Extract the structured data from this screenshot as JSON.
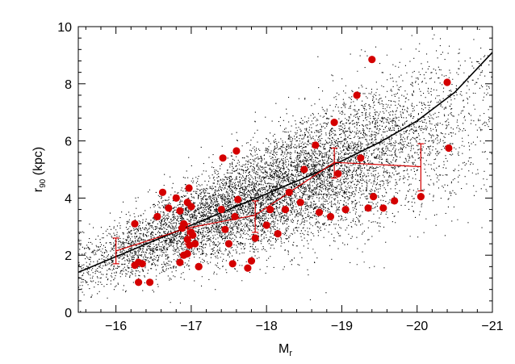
{
  "chart_data": {
    "type": "scatter",
    "title": "",
    "xlabel": "M",
    "xlabel_sub": "r",
    "ylabel": "r",
    "ylabel_sub": "90",
    "ylabel_unit": " (kpc)",
    "xlim": [
      -15.5,
      -21
    ],
    "ylim": [
      0,
      10
    ],
    "x_reversed": true,
    "x_ticks": [
      -16,
      -17,
      -18,
      -19,
      -20,
      -21
    ],
    "x_tick_labels": [
      "−16",
      "−17",
      "−18",
      "−19",
      "−20",
      "−21"
    ],
    "y_ticks": [
      0,
      2,
      4,
      6,
      8,
      10
    ],
    "y_tick_labels": [
      "0",
      "2",
      "4",
      "6",
      "8",
      "10"
    ],
    "grid": false,
    "colors": {
      "background_points": "#000000",
      "highlight_points": "#d40000",
      "trend_line": "#000000",
      "binned_line": "#d40000"
    },
    "background_cloud": {
      "description_count": 9000,
      "seed": 12345
    },
    "trend_line": {
      "x": [
        -15.5,
        -16,
        -16.5,
        -17,
        -17.5,
        -18,
        -18.5,
        -19,
        -19.5,
        -20,
        -20.5,
        -21
      ],
      "y": [
        1.4,
        1.95,
        2.5,
        3.05,
        3.6,
        4.15,
        4.7,
        5.3,
        5.95,
        6.7,
        7.7,
        9.1
      ]
    },
    "binned_median": {
      "x": [
        -16,
        -16.95,
        -17.85,
        -18.9,
        -20.05
      ],
      "y": [
        2.15,
        2.95,
        3.4,
        5.25,
        5.1
      ],
      "err_low": [
        1.7,
        2.4,
        2.8,
        4.7,
        4.25
      ],
      "err_high": [
        2.6,
        3.1,
        3.9,
        5.75,
        5.9
      ]
    },
    "series": [
      {
        "x": [
          -16.25,
          -16.35,
          -16.45,
          -16.55,
          -16.62,
          -16.7,
          -16.8,
          -16.85,
          -16.9,
          -16.95,
          -16.97,
          -17.0,
          -17.02,
          -16.95,
          -16.98,
          -17.05,
          -17.1,
          -16.9,
          -16.3,
          -16.25,
          -16.3,
          -17.42,
          -17.6,
          -17.62,
          -17.58,
          -17.45,
          -17.5,
          -17.55,
          -17.75,
          -17.8,
          -17.85,
          -18.0,
          -18.05,
          -18.15,
          -18.25,
          -18.3,
          -18.45,
          -18.5,
          -18.65,
          -18.7,
          -18.85,
          -18.9,
          -18.95,
          -19.05,
          -19.2,
          -19.25,
          -19.35,
          -19.4,
          -19.42,
          -19.55,
          -19.7,
          -20.05,
          -20.4,
          -20.42,
          -17.4,
          -17.0,
          -16.88,
          -16.85,
          -16.95,
          -17.1
        ],
        "y": [
          3.1,
          1.7,
          1.05,
          3.35,
          4.2,
          3.65,
          4.0,
          3.55,
          3.1,
          3.85,
          4.35,
          2.8,
          2.7,
          2.55,
          2.35,
          2.4,
          1.6,
          2.0,
          1.75,
          1.65,
          1.05,
          5.4,
          5.65,
          3.95,
          3.35,
          2.9,
          2.4,
          1.7,
          1.55,
          1.8,
          2.6,
          3.05,
          3.6,
          2.75,
          3.6,
          4.2,
          3.85,
          5.0,
          5.85,
          3.5,
          3.35,
          6.65,
          4.85,
          3.6,
          7.6,
          5.4,
          3.65,
          8.85,
          4.05,
          3.65,
          3.9,
          4.05,
          8.05,
          5.75,
          3.6,
          3.7,
          2.95,
          1.75,
          2.05,
          1.6
        ]
      }
    ]
  }
}
